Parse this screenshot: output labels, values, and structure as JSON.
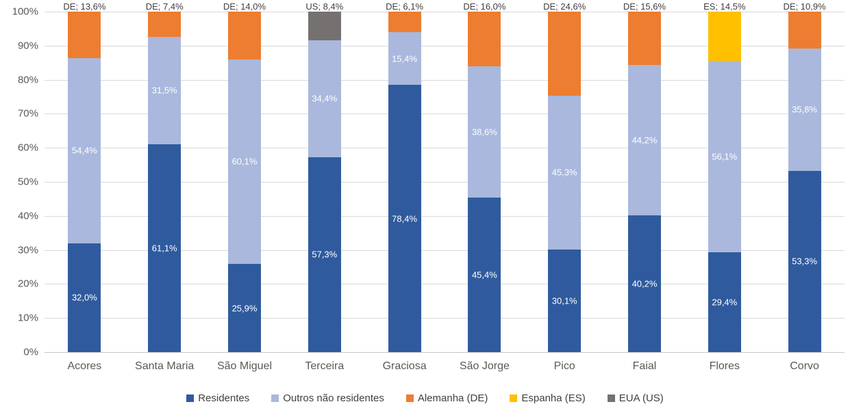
{
  "chart_data": {
    "type": "bar",
    "subtype": "stacked-100-percent",
    "title": "",
    "xlabel": "",
    "ylabel": "",
    "grid": true,
    "legend_position": "bottom",
    "y_axis": {
      "min": 0,
      "max": 100,
      "ticks": [
        "0%",
        "10%",
        "20%",
        "30%",
        "40%",
        "50%",
        "60%",
        "70%",
        "80%",
        "90%",
        "100%"
      ]
    },
    "categories": [
      "Acores",
      "Santa Maria",
      "São Miguel",
      "Terceira",
      "Graciosa",
      "São Jorge",
      "Pico",
      "Faial",
      "Flores",
      "Corvo"
    ],
    "series": [
      {
        "name": "Residentes",
        "color": "#2F5B9E",
        "values": [
          32.0,
          61.1,
          25.9,
          57.3,
          78.4,
          45.4,
          30.1,
          40.2,
          29.4,
          53.3
        ],
        "labels": [
          "32,0%",
          "61,1%",
          "25,9%",
          "57,3%",
          "78,4%",
          "45,4%",
          "30,1%",
          "40,2%",
          "29,4%",
          "53,3%"
        ]
      },
      {
        "name": "Outros não residentes",
        "color": "#A9B8DC",
        "values": [
          54.4,
          31.5,
          60.1,
          34.4,
          15.4,
          38.6,
          45.3,
          44.2,
          56.1,
          35.8
        ],
        "labels": [
          "54,4%",
          "31,5%",
          "60,1%",
          "34,4%",
          "15,4%",
          "38,6%",
          "45,3%",
          "44,2%",
          "56,1%",
          "35,8%"
        ]
      },
      {
        "name": "Alemanha (DE)",
        "color": "#ED7D31",
        "values": [
          13.6,
          7.4,
          14.0,
          0,
          6.1,
          16.0,
          24.6,
          15.6,
          0,
          10.9
        ]
      },
      {
        "name": "Espanha (ES)",
        "color": "#FFC000",
        "values": [
          0,
          0,
          0,
          0,
          0,
          0,
          0,
          0,
          14.5,
          0
        ]
      },
      {
        "name": "EUA (US)",
        "color": "#767171",
        "values": [
          0,
          0,
          0,
          8.4,
          0,
          0,
          0,
          0,
          0,
          0
        ]
      }
    ],
    "top_labels": [
      "DE; 13,6%",
      "DE; 7,4%",
      "DE; 14,0%",
      "US; 8,4%",
      "DE; 6,1%",
      "DE; 16,0%",
      "DE; 24,6%",
      "DE; 15,6%",
      "ES; 14,5%",
      "DE; 10,9%"
    ],
    "legend": {
      "items": [
        {
          "label": "Residentes",
          "color": "#2F5B9E"
        },
        {
          "label": "Outros não residentes",
          "color": "#A9B8DC"
        },
        {
          "label": "Alemanha (DE)",
          "color": "#ED7D31"
        },
        {
          "label": "Espanha (ES)",
          "color": "#FFC000"
        },
        {
          "label": "EUA (US)",
          "color": "#767171"
        }
      ]
    }
  },
  "colors": {
    "gridline": "#D9D9D9",
    "axis_line": "#C6C6C6",
    "tick_label": "#595959",
    "category_label": "#595959",
    "data_label_inside": "#FFFFFF",
    "data_label_top": "#404040",
    "background": "#FFFFFF"
  }
}
